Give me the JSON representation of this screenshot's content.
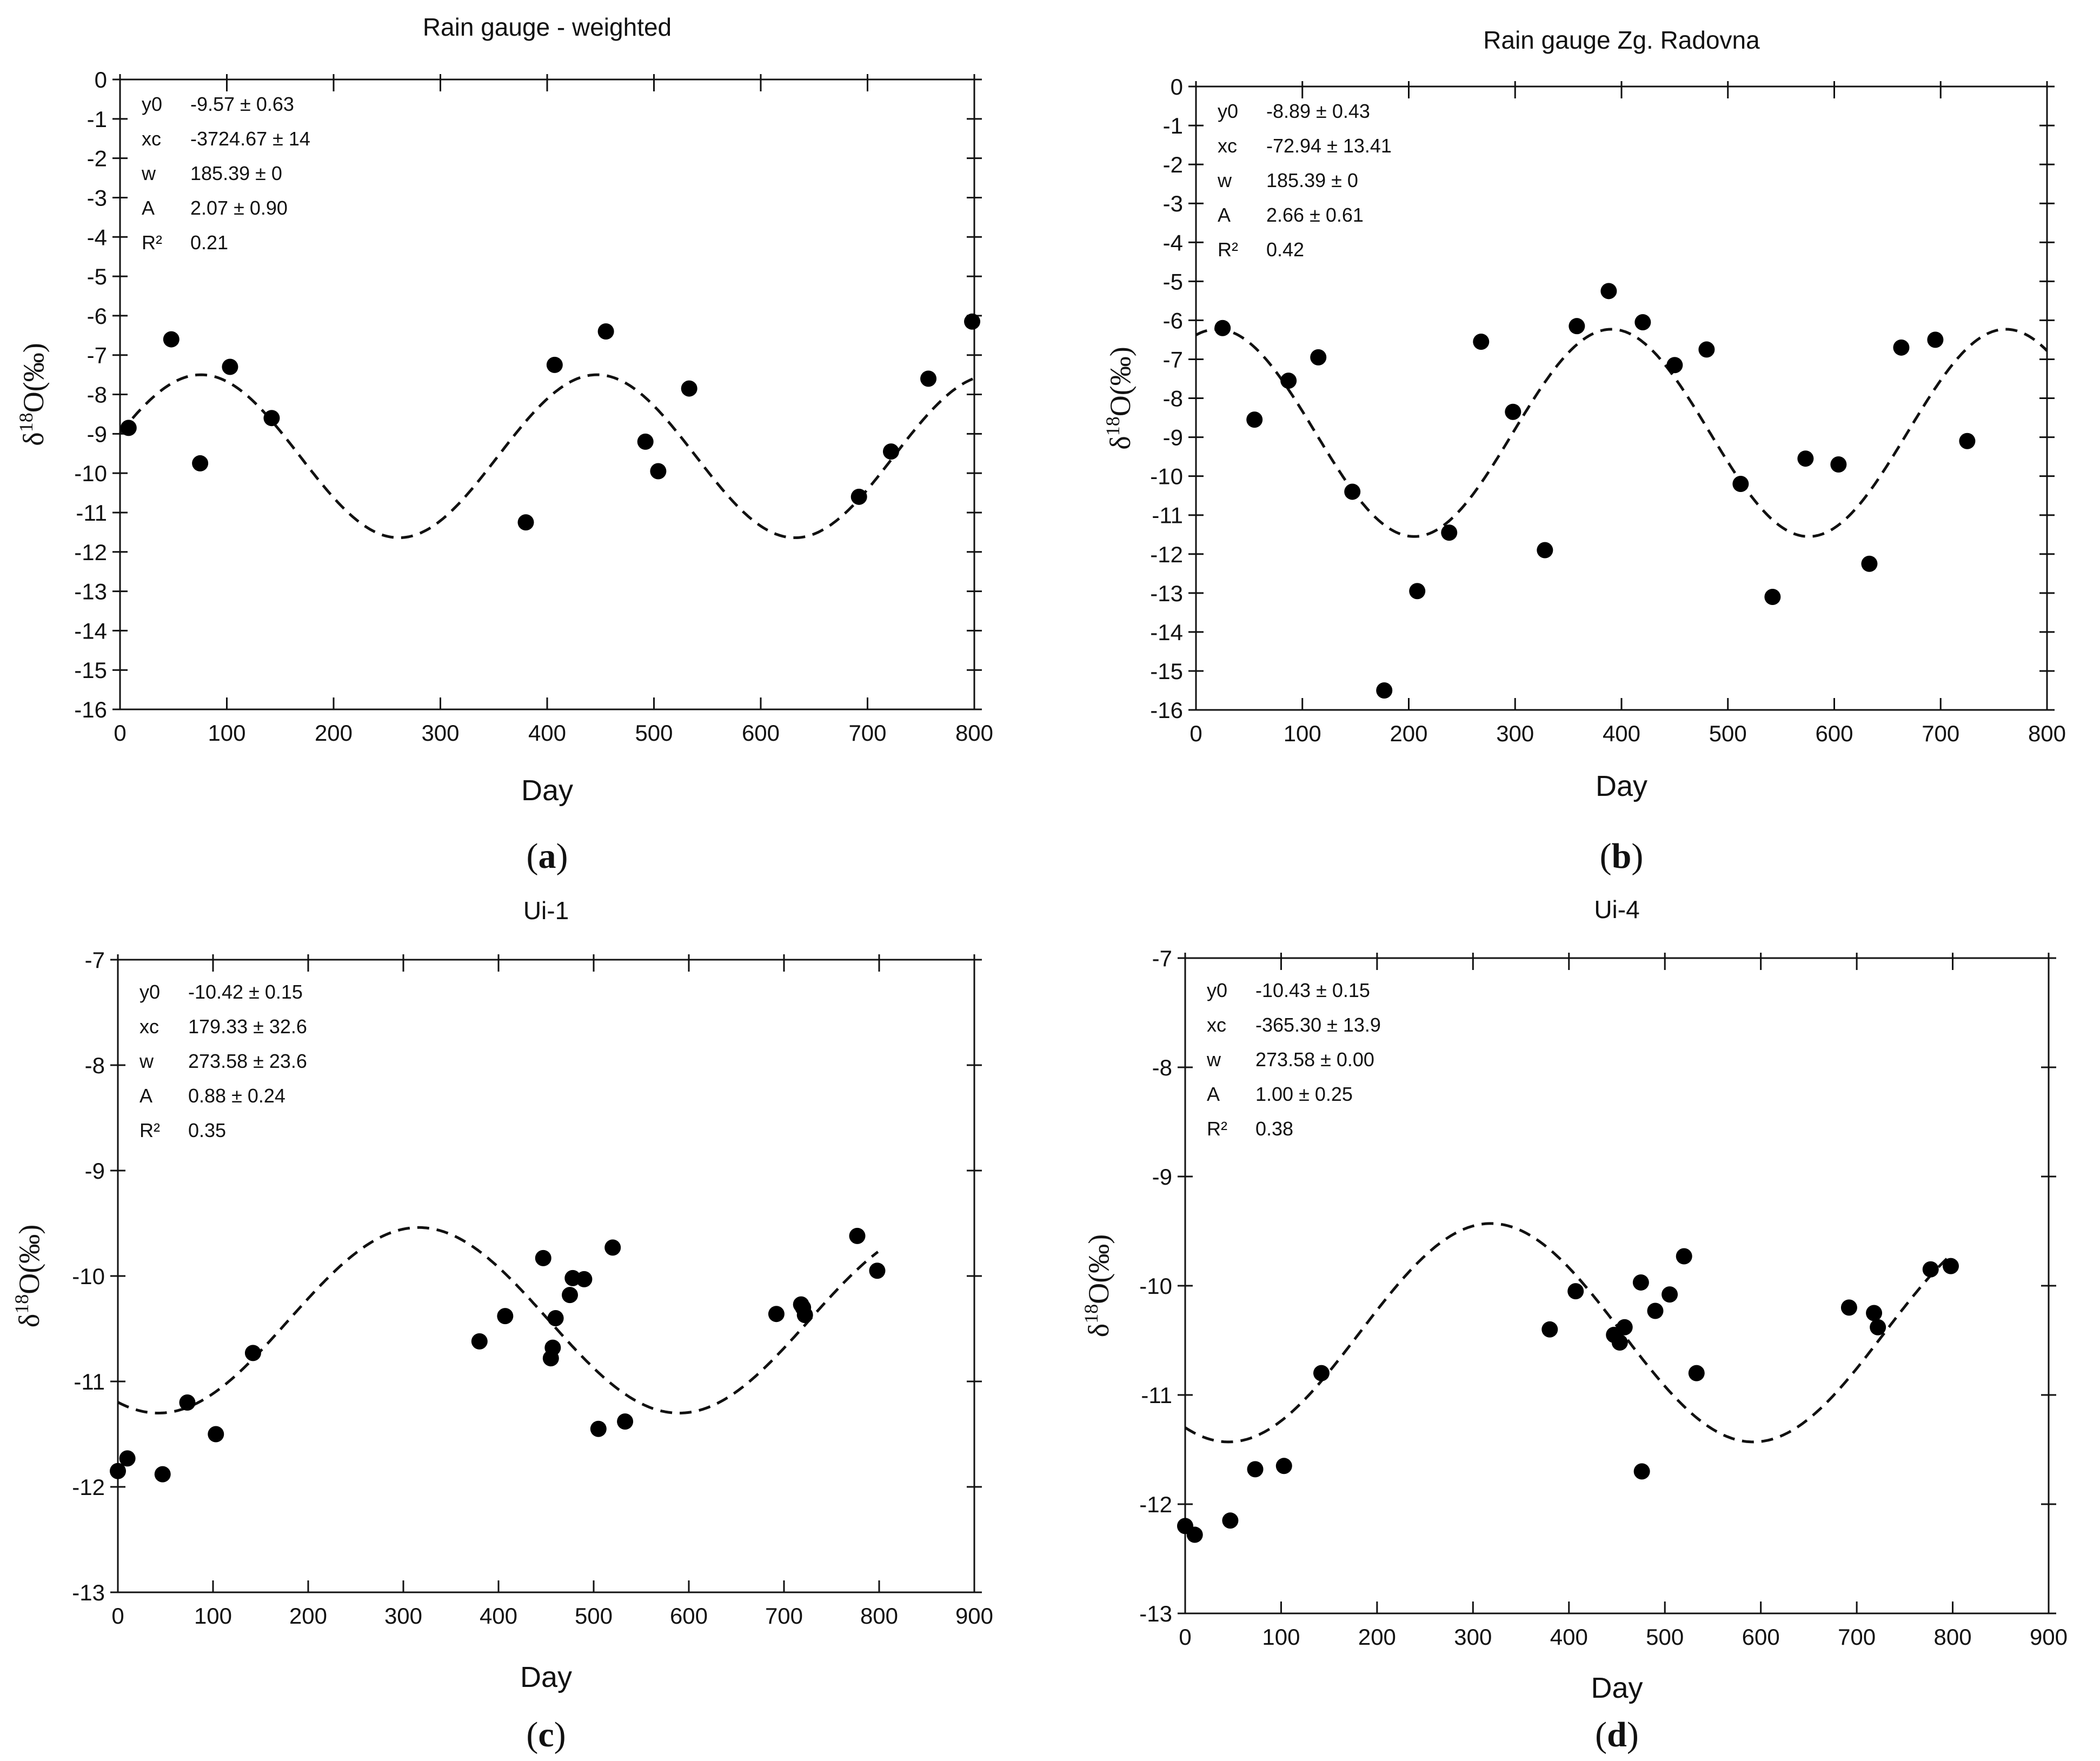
{
  "chart_data": [
    {
      "type": "scatter",
      "panel_label": "a",
      "title": "Rain gauge - weighted",
      "xlabel": "Day",
      "ylabel": "δ18O(‰)",
      "ylabel_base": "δ",
      "ylabel_sup": "18",
      "ylabel_rest": "O(‰)",
      "xlim": [
        0,
        800
      ],
      "ylim": [
        -16,
        0
      ],
      "xticks": [
        0,
        100,
        200,
        300,
        400,
        500,
        600,
        700,
        800
      ],
      "yticks": [
        0,
        -1,
        -2,
        -3,
        -4,
        -5,
        -6,
        -7,
        -8,
        -9,
        -10,
        -11,
        -12,
        -13,
        -14,
        -15,
        -16
      ],
      "grid": false,
      "stats": [
        {
          "label": "y0",
          "value": "-9.57 ± 0.63"
        },
        {
          "label": "xc",
          "value": "-3724.67 ± 14"
        },
        {
          "label": "w",
          "value": "185.39 ± 0"
        },
        {
          "label": "A",
          "value": "2.07 ± 0.90"
        },
        {
          "label": "R²",
          "value": "0.21"
        }
      ],
      "fit": {
        "y0": -9.57,
        "xc": -3724.67,
        "w": 185.39,
        "A": 2.07
      },
      "points": [
        {
          "x": 8,
          "y": -8.85
        },
        {
          "x": 48,
          "y": -6.6
        },
        {
          "x": 75,
          "y": -9.75
        },
        {
          "x": 103,
          "y": -7.3
        },
        {
          "x": 142,
          "y": -8.6
        },
        {
          "x": 380,
          "y": -11.25
        },
        {
          "x": 407,
          "y": -7.25
        },
        {
          "x": 455,
          "y": -6.4
        },
        {
          "x": 492,
          "y": -9.2
        },
        {
          "x": 504,
          "y": -9.95
        },
        {
          "x": 533,
          "y": -7.85
        },
        {
          "x": 692,
          "y": -10.6
        },
        {
          "x": 722,
          "y": -9.45
        },
        {
          "x": 757,
          "y": -7.6
        },
        {
          "x": 798,
          "y": -6.15
        }
      ]
    },
    {
      "type": "scatter",
      "panel_label": "b",
      "title": "Rain gauge Zg. Radovna",
      "xlabel": "Day",
      "ylabel": "δ18O(‰)",
      "ylabel_base": "δ",
      "ylabel_sup": "18",
      "ylabel_rest": "O(‰)",
      "xlim": [
        0,
        800
      ],
      "ylim": [
        -16,
        0
      ],
      "xticks": [
        0,
        100,
        200,
        300,
        400,
        500,
        600,
        700,
        800
      ],
      "yticks": [
        0,
        -1,
        -2,
        -3,
        -4,
        -5,
        -6,
        -7,
        -8,
        -9,
        -10,
        -11,
        -12,
        -13,
        -14,
        -15,
        -16
      ],
      "grid": false,
      "stats": [
        {
          "label": "y0",
          "value": "-8.89 ± 0.43"
        },
        {
          "label": "xc",
          "value": "-72.94 ± 13.41"
        },
        {
          "label": "w",
          "value": "185.39 ± 0"
        },
        {
          "label": "A",
          "value": "2.66 ± 0.61"
        },
        {
          "label": "R²",
          "value": "0.42"
        }
      ],
      "fit": {
        "y0": -8.89,
        "xc": -72.94,
        "w": 185.39,
        "A": 2.66
      },
      "points": [
        {
          "x": 25,
          "y": -6.2
        },
        {
          "x": 55,
          "y": -8.55
        },
        {
          "x": 87,
          "y": -7.55
        },
        {
          "x": 115,
          "y": -6.95
        },
        {
          "x": 147,
          "y": -10.4
        },
        {
          "x": 177,
          "y": -15.5
        },
        {
          "x": 208,
          "y": -12.95
        },
        {
          "x": 238,
          "y": -11.45
        },
        {
          "x": 268,
          "y": -6.55
        },
        {
          "x": 298,
          "y": -8.35
        },
        {
          "x": 328,
          "y": -11.9
        },
        {
          "x": 358,
          "y": -6.15
        },
        {
          "x": 388,
          "y": -5.25
        },
        {
          "x": 420,
          "y": -6.05
        },
        {
          "x": 450,
          "y": -7.15
        },
        {
          "x": 480,
          "y": -6.75
        },
        {
          "x": 512,
          "y": -10.2
        },
        {
          "x": 542,
          "y": -13.1
        },
        {
          "x": 573,
          "y": -9.55
        },
        {
          "x": 604,
          "y": -9.7
        },
        {
          "x": 633,
          "y": -12.25
        },
        {
          "x": 663,
          "y": -6.7
        },
        {
          "x": 695,
          "y": -6.5
        },
        {
          "x": 725,
          "y": -9.1
        }
      ]
    },
    {
      "type": "scatter",
      "panel_label": "c",
      "title": "Ui-1",
      "xlabel": "Day",
      "ylabel": "δ18O(‰)",
      "ylabel_base": "δ",
      "ylabel_sup": "18",
      "ylabel_rest": "O(‰)",
      "xlim": [
        0,
        900
      ],
      "ylim": [
        -13,
        -7
      ],
      "xticks": [
        0,
        100,
        200,
        300,
        400,
        500,
        600,
        700,
        800,
        900
      ],
      "yticks": [
        -7,
        -8,
        -9,
        -10,
        -11,
        -12,
        -13
      ],
      "grid": false,
      "stats": [
        {
          "label": "y0",
          "value": "-10.42 ± 0.15"
        },
        {
          "label": "xc",
          "value": "179.33 ± 32.6"
        },
        {
          "label": "w",
          "value": "273.58 ± 23.6"
        },
        {
          "label": "A",
          "value": "0.88 ± 0.24"
        },
        {
          "label": "R²",
          "value": "0.35"
        }
      ],
      "fit": {
        "y0": -10.42,
        "xc": 179.33,
        "w": 273.58,
        "A": 0.88
      },
      "points": [
        {
          "x": 0,
          "y": -11.85
        },
        {
          "x": 10,
          "y": -11.73
        },
        {
          "x": 47,
          "y": -11.88
        },
        {
          "x": 73,
          "y": -11.2
        },
        {
          "x": 103,
          "y": -11.5
        },
        {
          "x": 142,
          "y": -10.73
        },
        {
          "x": 380,
          "y": -10.62
        },
        {
          "x": 407,
          "y": -10.38
        },
        {
          "x": 447,
          "y": -9.83
        },
        {
          "x": 455,
          "y": -10.78
        },
        {
          "x": 457,
          "y": -10.68
        },
        {
          "x": 460,
          "y": -10.4
        },
        {
          "x": 475,
          "y": -10.18
        },
        {
          "x": 478,
          "y": -10.02
        },
        {
          "x": 490,
          "y": -10.03
        },
        {
          "x": 505,
          "y": -11.45
        },
        {
          "x": 520,
          "y": -9.73
        },
        {
          "x": 533,
          "y": -11.38
        },
        {
          "x": 692,
          "y": -10.36
        },
        {
          "x": 718,
          "y": -10.27
        },
        {
          "x": 720,
          "y": -10.3
        },
        {
          "x": 722,
          "y": -10.37
        },
        {
          "x": 777,
          "y": -9.62
        },
        {
          "x": 798,
          "y": -9.95
        }
      ]
    },
    {
      "type": "scatter",
      "panel_label": "d",
      "title": "Ui-4",
      "xlabel": "Day",
      "ylabel": "δ18O(‰)",
      "ylabel_base": "δ",
      "ylabel_sup": "18",
      "ylabel_rest": "O(‰)",
      "xlim": [
        0,
        900
      ],
      "ylim": [
        -13,
        -7
      ],
      "xticks": [
        0,
        100,
        200,
        300,
        400,
        500,
        600,
        700,
        800,
        900
      ],
      "yticks": [
        -7,
        -8,
        -9,
        -10,
        -11,
        -12,
        -13
      ],
      "grid": false,
      "stats": [
        {
          "label": "y0",
          "value": "-10.43 ± 0.15"
        },
        {
          "label": "xc",
          "value": "-365.30 ± 13.9"
        },
        {
          "label": "w",
          "value": "273.58 ± 0.00"
        },
        {
          "label": "A",
          "value": "1.00 ± 0.25"
        },
        {
          "label": "R²",
          "value": "0.38"
        }
      ],
      "fit": {
        "y0": -10.43,
        "xc": -365.3,
        "w": 273.58,
        "A": 1.0
      },
      "points": [
        {
          "x": 0,
          "y": -12.2
        },
        {
          "x": 10,
          "y": -12.28
        },
        {
          "x": 47,
          "y": -12.15
        },
        {
          "x": 73,
          "y": -11.68
        },
        {
          "x": 103,
          "y": -11.65
        },
        {
          "x": 142,
          "y": -10.8
        },
        {
          "x": 380,
          "y": -10.4
        },
        {
          "x": 407,
          "y": -10.05
        },
        {
          "x": 447,
          "y": -10.45
        },
        {
          "x": 453,
          "y": -10.52
        },
        {
          "x": 458,
          "y": -10.38
        },
        {
          "x": 475,
          "y": -9.97
        },
        {
          "x": 476,
          "y": -11.7
        },
        {
          "x": 490,
          "y": -10.23
        },
        {
          "x": 505,
          "y": -10.08
        },
        {
          "x": 520,
          "y": -9.73
        },
        {
          "x": 533,
          "y": -10.8
        },
        {
          "x": 692,
          "y": -10.2
        },
        {
          "x": 718,
          "y": -10.25
        },
        {
          "x": 722,
          "y": -10.38
        },
        {
          "x": 777,
          "y": -9.85
        },
        {
          "x": 798,
          "y": -9.82
        }
      ]
    }
  ]
}
